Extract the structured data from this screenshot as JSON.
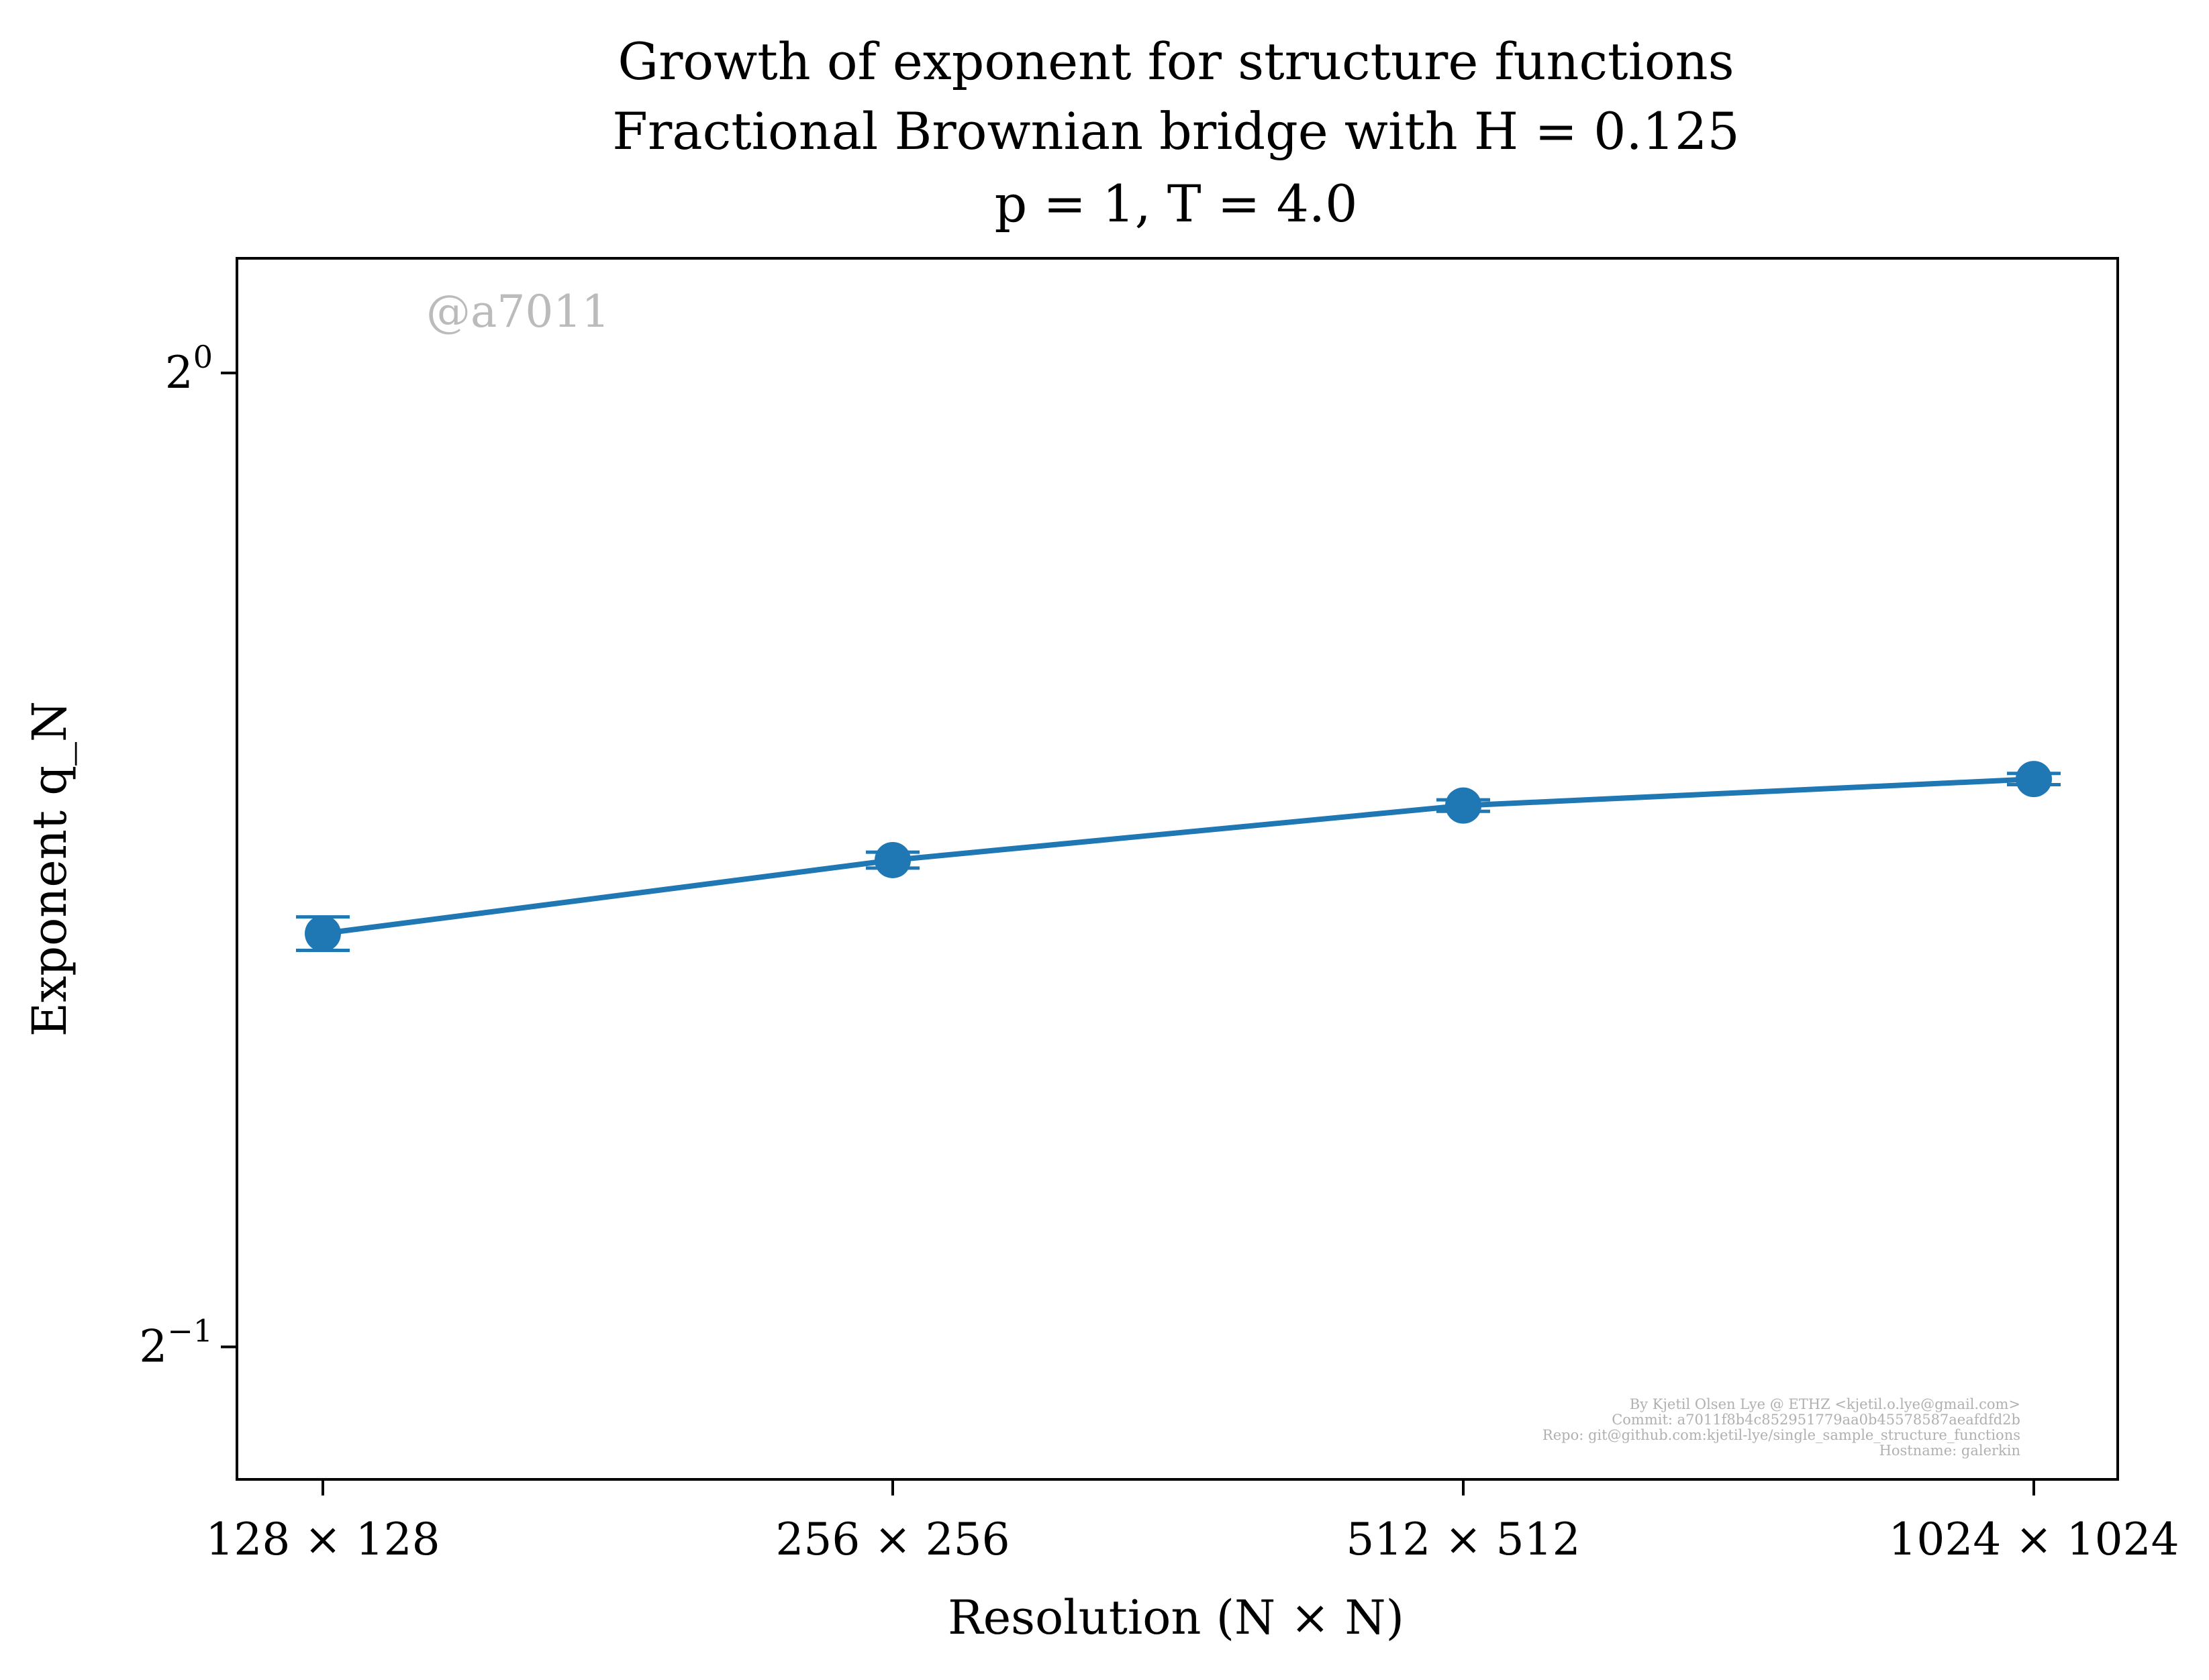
{
  "chart_data": {
    "type": "line",
    "title_lines": [
      "Growth of exponent for structure functions",
      "Fractional Brownian bridge with H = 0.125",
      "p = 1, T = 4.0"
    ],
    "xlabel": "Resolution (N × N)",
    "ylabel": "Exponent q_N",
    "categories": [
      "128 × 128",
      "256 × 256",
      "512 × 512",
      "1024 × 1024"
    ],
    "y_scale": "log2",
    "ylim": [
      0.455,
      1.085
    ],
    "y_ticks": [
      {
        "value": 1.0,
        "base": "2",
        "exp": "0"
      },
      {
        "value": 0.5,
        "base": "2",
        "exp": "−1"
      }
    ],
    "series": [
      {
        "values": [
          0.671,
          0.707,
          0.735,
          0.749
        ],
        "errors": [
          0.008,
          0.004,
          0.003,
          0.003
        ],
        "color": "#1f77b4"
      }
    ],
    "grid": false,
    "legend": "none"
  },
  "watermark": "@a7011",
  "footer_lines": [
    "By Kjetil Olsen Lye @ ETHZ <kjetil.o.lye@gmail.com>",
    "Commit: a7011f8b4c852951779aa0b45578587aeafdfd2b",
    "Repo: git@github.com:kjetil-lye/single_sample_structure_functions",
    "Hostname: galerkin"
  ]
}
